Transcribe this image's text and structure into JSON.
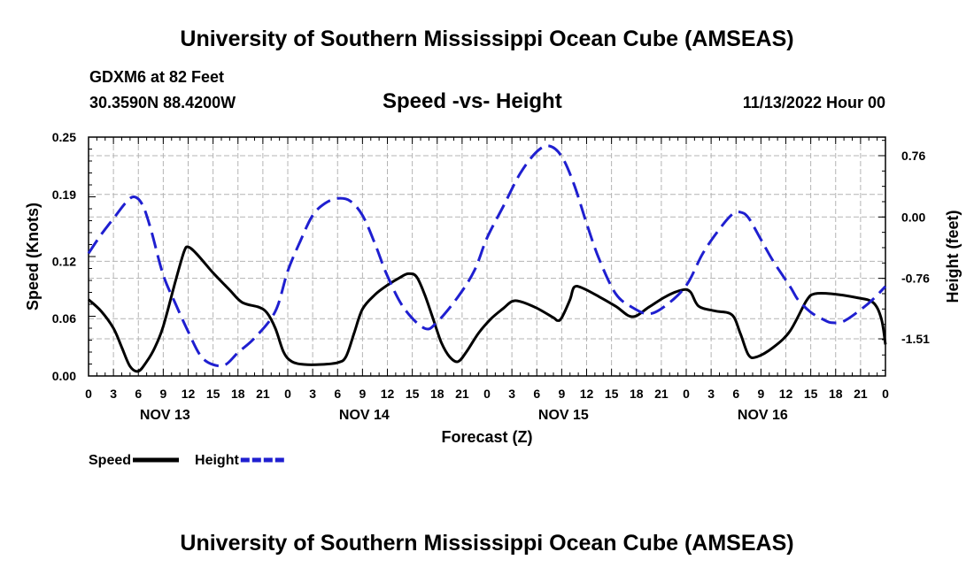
{
  "page": {
    "title_top": "University of Southern Mississippi Ocean Cube (AMSEAS)",
    "title_bottom": "University of Southern Mississippi Ocean Cube (AMSEAS)",
    "station": "GDXM6 at 82 Feet",
    "coords": "30.3590N  88.4200W",
    "datetime": "11/13/2022 Hour 00"
  },
  "chart_data": {
    "type": "line",
    "title": "Speed -vs- Height",
    "xlabel": "Forecast (Z)",
    "ylabel": "Speed (Knots)",
    "y2label": "Height (feet)",
    "xlim": [
      0,
      96
    ],
    "ylim": [
      0,
      0.25
    ],
    "y2lim": [
      -1.97,
      0.99
    ],
    "xticks": [
      0,
      3,
      6,
      9,
      12,
      15,
      18,
      21,
      24,
      27,
      30,
      33,
      36,
      39,
      42,
      45,
      48,
      51,
      54,
      57,
      60,
      63,
      66,
      69,
      72,
      75,
      78,
      81,
      84,
      87,
      90,
      93,
      96
    ],
    "xtick_labels": [
      "0",
      "3",
      "6",
      "9",
      "12",
      "15",
      "18",
      "21",
      "0",
      "3",
      "6",
      "9",
      "12",
      "15",
      "18",
      "21",
      "0",
      "3",
      "6",
      "9",
      "12",
      "15",
      "18",
      "21",
      "0",
      "3",
      "6",
      "9",
      "12",
      "15",
      "18",
      "21",
      "0"
    ],
    "date_labels": [
      {
        "label": "NOV 13",
        "x": 9
      },
      {
        "label": "NOV 14",
        "x": 33
      },
      {
        "label": "NOV 15",
        "x": 57
      },
      {
        "label": "NOV 16",
        "x": 81
      }
    ],
    "yticks": [
      0.0,
      0.06,
      0.12,
      0.19,
      0.25
    ],
    "ytick_labels": [
      "0.00",
      "0.06",
      "0.12",
      "0.19",
      "0.25"
    ],
    "y2ticks": [
      0.76,
      0.0,
      -0.76,
      -1.51
    ],
    "y2tick_labels": [
      "0.76",
      "0.00",
      "-0.76",
      "-1.51"
    ],
    "series": [
      {
        "name": "Speed",
        "axis": "left",
        "color": "#000000",
        "dash": "solid",
        "points": [
          [
            0,
            0.08
          ],
          [
            1.5,
            0.068
          ],
          [
            3,
            0.05
          ],
          [
            4,
            0.03
          ],
          [
            5,
            0.01
          ],
          [
            6,
            0.005
          ],
          [
            7,
            0.015
          ],
          [
            8,
            0.03
          ],
          [
            9,
            0.052
          ],
          [
            10.5,
            0.1
          ],
          [
            11.5,
            0.13
          ],
          [
            12,
            0.135
          ],
          [
            13,
            0.128
          ],
          [
            15,
            0.108
          ],
          [
            17,
            0.09
          ],
          [
            18.5,
            0.077
          ],
          [
            20.5,
            0.072
          ],
          [
            21.5,
            0.066
          ],
          [
            22.5,
            0.05
          ],
          [
            23.5,
            0.025
          ],
          [
            24.5,
            0.015
          ],
          [
            26,
            0.012
          ],
          [
            28,
            0.012
          ],
          [
            30,
            0.014
          ],
          [
            31,
            0.02
          ],
          [
            32,
            0.045
          ],
          [
            33,
            0.07
          ],
          [
            34.5,
            0.085
          ],
          [
            36,
            0.095
          ],
          [
            37.5,
            0.103
          ],
          [
            38.5,
            0.107
          ],
          [
            39.5,
            0.104
          ],
          [
            40.5,
            0.085
          ],
          [
            41.5,
            0.06
          ],
          [
            42.5,
            0.035
          ],
          [
            43.5,
            0.02
          ],
          [
            44.5,
            0.015
          ],
          [
            45.5,
            0.025
          ],
          [
            47,
            0.045
          ],
          [
            48.5,
            0.06
          ],
          [
            50,
            0.071
          ],
          [
            51,
            0.078
          ],
          [
            52,
            0.078
          ],
          [
            54,
            0.071
          ],
          [
            56,
            0.061
          ],
          [
            56.5,
            0.058
          ],
          [
            57,
            0.061
          ],
          [
            58,
            0.08
          ],
          [
            58.5,
            0.093
          ],
          [
            59.5,
            0.092
          ],
          [
            61.5,
            0.083
          ],
          [
            63.5,
            0.073
          ],
          [
            65.5,
            0.062
          ],
          [
            67.5,
            0.072
          ],
          [
            69.5,
            0.083
          ],
          [
            71.5,
            0.09
          ],
          [
            72.5,
            0.088
          ],
          [
            73.5,
            0.073
          ],
          [
            75.5,
            0.068
          ],
          [
            77.5,
            0.064
          ],
          [
            78.5,
            0.045
          ],
          [
            79.5,
            0.022
          ],
          [
            80.5,
            0.02
          ],
          [
            82.5,
            0.03
          ],
          [
            84.5,
            0.047
          ],
          [
            86.5,
            0.079
          ],
          [
            87.5,
            0.086
          ],
          [
            89.5,
            0.086
          ],
          [
            92.5,
            0.082
          ],
          [
            94.5,
            0.077
          ],
          [
            95.5,
            0.06
          ],
          [
            96,
            0.033
          ]
        ]
      },
      {
        "name": "Height",
        "axis": "right",
        "color": "#1f1fd0",
        "dash": "dashed",
        "points": [
          [
            0,
            -0.45
          ],
          [
            1.5,
            -0.22
          ],
          [
            3,
            -0.02
          ],
          [
            4.5,
            0.18
          ],
          [
            5.5,
            0.25
          ],
          [
            6.5,
            0.15
          ],
          [
            7.5,
            -0.15
          ],
          [
            9,
            -0.72
          ],
          [
            10.5,
            -1.08
          ],
          [
            12,
            -1.42
          ],
          [
            13.5,
            -1.72
          ],
          [
            15,
            -1.83
          ],
          [
            16.5,
            -1.83
          ],
          [
            18,
            -1.68
          ],
          [
            20,
            -1.5
          ],
          [
            22.5,
            -1.17
          ],
          [
            24,
            -0.67
          ],
          [
            25.5,
            -0.3
          ],
          [
            27,
            0.02
          ],
          [
            28.5,
            0.17
          ],
          [
            30,
            0.23
          ],
          [
            31.5,
            0.2
          ],
          [
            33,
            0.02
          ],
          [
            34.5,
            -0.33
          ],
          [
            36,
            -0.73
          ],
          [
            38,
            -1.13
          ],
          [
            40.5,
            -1.38
          ],
          [
            42,
            -1.3
          ],
          [
            44.5,
            -0.99
          ],
          [
            46.5,
            -0.66
          ],
          [
            48,
            -0.26
          ],
          [
            50,
            0.14
          ],
          [
            52,
            0.54
          ],
          [
            54,
            0.81
          ],
          [
            55.5,
            0.88
          ],
          [
            57,
            0.75
          ],
          [
            58.5,
            0.4
          ],
          [
            60,
            -0.08
          ],
          [
            61.5,
            -0.52
          ],
          [
            63.5,
            -0.95
          ],
          [
            65.5,
            -1.12
          ],
          [
            67.5,
            -1.2
          ],
          [
            69.5,
            -1.1
          ],
          [
            72,
            -0.85
          ],
          [
            74,
            -0.45
          ],
          [
            76,
            -0.15
          ],
          [
            77.5,
            0.03
          ],
          [
            78.5,
            0.06
          ],
          [
            79.5,
            -0.01
          ],
          [
            81,
            -0.28
          ],
          [
            82.5,
            -0.55
          ],
          [
            84.5,
            -0.86
          ],
          [
            85.5,
            -1.03
          ],
          [
            87,
            -1.18
          ],
          [
            88.5,
            -1.27
          ],
          [
            89.5,
            -1.31
          ],
          [
            91,
            -1.29
          ],
          [
            93,
            -1.15
          ],
          [
            94.5,
            -1.02
          ],
          [
            96,
            -0.86
          ]
        ]
      }
    ],
    "legend": [
      {
        "label": "Speed",
        "color": "#000000",
        "dash": "solid"
      },
      {
        "label": "Height",
        "color": "#1f1fd0",
        "dash": "dashed"
      }
    ]
  }
}
